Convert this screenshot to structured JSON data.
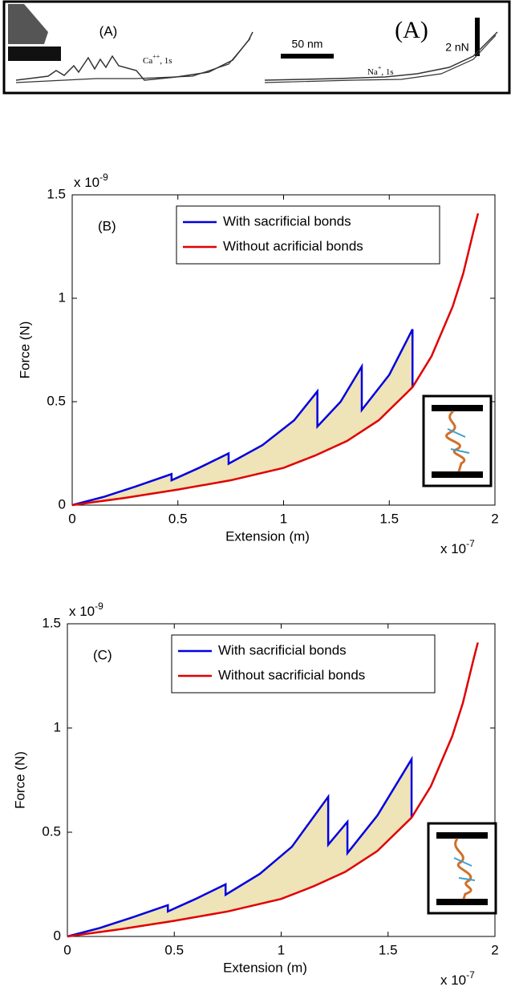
{
  "panel_a": {
    "label_small": "(A)",
    "ion_left": {
      "ion": "Ca",
      "charge": "++",
      "time": ", 1s"
    },
    "scale_x": "50 nm",
    "label_big": "(A)",
    "scale_y": "2 nN",
    "ion_right": {
      "ion": "Na",
      "charge": "+",
      "time": ", 1s"
    }
  },
  "chart_data": [
    {
      "type": "line",
      "panel_label": "(B)",
      "x_label": "Extension (m)",
      "y_label": "Force (N)",
      "x_multiplier": {
        "base": "x 10",
        "exponent": "-7"
      },
      "y_multiplier": {
        "base": "x 10",
        "exponent": "-9"
      },
      "xlim": [
        0,
        2
      ],
      "ylim": [
        0,
        1.5
      ],
      "xticks": [
        0,
        0.5,
        1,
        1.5,
        2
      ],
      "yticks": [
        0,
        0.5,
        1,
        1.5
      ],
      "legend": "upper center",
      "shade_color": "#efe3b8",
      "series": [
        {
          "name": "With sacrificial bonds",
          "color": "#0000e0",
          "x": [
            0,
            0.15,
            0.3,
            0.47,
            0.47,
            0.6,
            0.74,
            0.74,
            0.9,
            1.05,
            1.16,
            1.16,
            1.27,
            1.37,
            1.37,
            1.5,
            1.61,
            1.61
          ],
          "values": [
            0,
            0.04,
            0.09,
            0.15,
            0.12,
            0.18,
            0.25,
            0.2,
            0.29,
            0.41,
            0.55,
            0.38,
            0.5,
            0.67,
            0.46,
            0.63,
            0.85,
            0.57
          ]
        },
        {
          "name": "Without acrificial bonds",
          "color": "#e00000",
          "x": [
            0,
            0.25,
            0.5,
            0.75,
            1.0,
            1.15,
            1.3,
            1.45,
            1.61,
            1.7,
            1.8,
            1.85,
            1.9,
            1.92
          ],
          "values": [
            0,
            0.035,
            0.075,
            0.12,
            0.18,
            0.24,
            0.31,
            0.41,
            0.57,
            0.72,
            0.96,
            1.12,
            1.33,
            1.41
          ]
        }
      ]
    },
    {
      "type": "line",
      "panel_label": "(C)",
      "x_label": "Extension (m)",
      "y_label": "Force (N)",
      "x_multiplier": {
        "base": "x 10",
        "exponent": "-7"
      },
      "y_multiplier": {
        "base": "x 10",
        "exponent": "-9"
      },
      "xlim": [
        0,
        2
      ],
      "ylim": [
        0,
        1.5
      ],
      "xticks": [
        0,
        0.5,
        1,
        1.5,
        2
      ],
      "yticks": [
        0,
        0.5,
        1,
        1.5
      ],
      "legend": "upper center",
      "shade_color": "#efe3b8",
      "series": [
        {
          "name": "With sacrificial bonds",
          "color": "#0000e0",
          "x": [
            0,
            0.15,
            0.3,
            0.47,
            0.47,
            0.6,
            0.74,
            0.74,
            0.9,
            1.05,
            1.22,
            1.22,
            1.31,
            1.31,
            1.45,
            1.61,
            1.61
          ],
          "values": [
            0,
            0.04,
            0.09,
            0.15,
            0.12,
            0.18,
            0.25,
            0.2,
            0.3,
            0.43,
            0.67,
            0.44,
            0.55,
            0.4,
            0.58,
            0.85,
            0.57
          ]
        },
        {
          "name": "Without sacrificial bonds",
          "color": "#e00000",
          "x": [
            0,
            0.25,
            0.5,
            0.75,
            1.0,
            1.15,
            1.3,
            1.45,
            1.61,
            1.7,
            1.8,
            1.85,
            1.9,
            1.92
          ],
          "values": [
            0,
            0.035,
            0.075,
            0.12,
            0.18,
            0.24,
            0.31,
            0.41,
            0.57,
            0.72,
            0.96,
            1.12,
            1.33,
            1.41
          ]
        }
      ]
    }
  ]
}
